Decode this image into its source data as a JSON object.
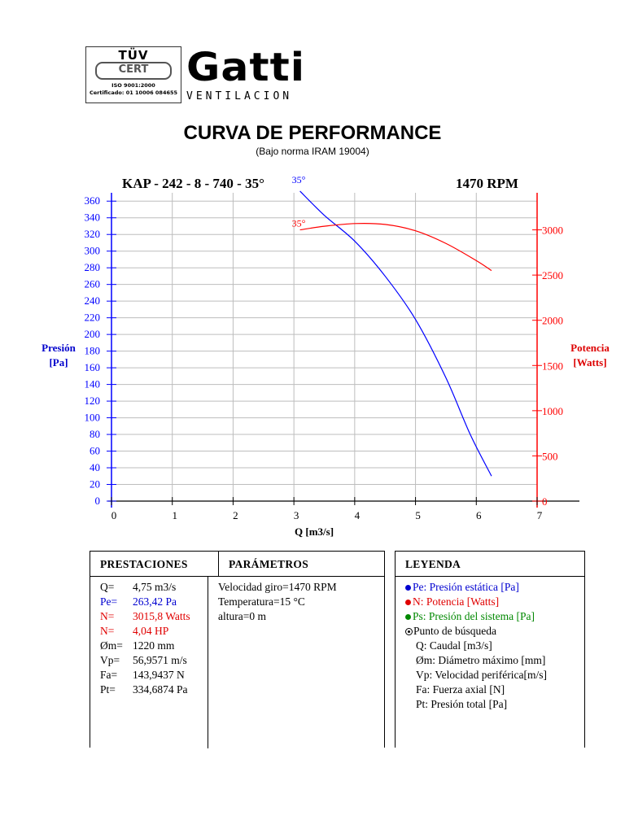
{
  "header": {
    "cert_top": "TÜV",
    "cert_mid": "CERT",
    "cert_iso": "ISO 9001:2000",
    "cert_number": "Certificado: 01 10006 084655",
    "brand_name": "Gatti",
    "brand_sub": "VENTILACION",
    "title": "CURVA DE PERFORMANCE",
    "subtitle": "(Bajo norma IRAM 19004)",
    "model": "KAP - 242 - 8 - 740 - 35°",
    "rpm": "1470 RPM"
  },
  "chart_data": {
    "type": "line",
    "xlabel": "Q [m3/s]",
    "ylabel_left": "Presión [Pa]",
    "ylabel_right": "Potencia [Watts]",
    "xlim": [
      0,
      7
    ],
    "ylim_left": [
      0,
      370
    ],
    "ylim_right": [
      0,
      3410
    ],
    "xticks": [
      0,
      1,
      2,
      3,
      4,
      5,
      6,
      7
    ],
    "yticks_left": [
      0,
      20,
      40,
      60,
      80,
      100,
      120,
      140,
      160,
      180,
      200,
      220,
      240,
      260,
      280,
      300,
      320,
      340,
      360
    ],
    "yticks_right": [
      0,
      500,
      1000,
      1500,
      2000,
      2500,
      3000
    ],
    "grid": true,
    "colors": {
      "pressure": "#0000ff",
      "power": "#ff0000"
    },
    "series": [
      {
        "name": "Pe",
        "label": "35°",
        "axis": "left",
        "x": [
          3.1,
          3.5,
          4.0,
          4.5,
          5.0,
          5.5,
          5.9,
          6.25
        ],
        "y": [
          372,
          343,
          312,
          270,
          218,
          148,
          80,
          30
        ]
      },
      {
        "name": "N",
        "label": "35°",
        "axis": "right",
        "x": [
          3.1,
          3.5,
          4.0,
          4.5,
          5.0,
          5.5,
          6.0,
          6.25
        ],
        "y": [
          3000,
          3040,
          3070,
          3060,
          2990,
          2850,
          2660,
          2550
        ]
      }
    ]
  },
  "prestaciones": {
    "header": "PRESTACIONES",
    "rows": [
      {
        "k": "Q=",
        "v": "4,75 m3/s",
        "color": ""
      },
      {
        "k": "Pe=",
        "v": "263,42 Pa",
        "color": "blue"
      },
      {
        "k": "N=",
        "v": "3015,8 Watts",
        "color": "red"
      },
      {
        "k": "N=",
        "v": "4,04 HP",
        "color": "red"
      },
      {
        "k": "Øm=",
        "v": "1220 mm",
        "color": ""
      },
      {
        "k": "Vp=",
        "v": "56,9571 m/s",
        "color": ""
      },
      {
        "k": "Fa=",
        "v": "143,9437 N",
        "color": ""
      },
      {
        "k": "Pt=",
        "v": "334,6874 Pa",
        "color": ""
      }
    ]
  },
  "parametros": {
    "header": "PARÁMETROS",
    "rows": [
      "Velocidad giro=1470 RPM",
      "Temperatura=15 °C",
      "altura=0 m"
    ]
  },
  "leyenda": {
    "header": "LEYENDA",
    "pe": "Pe: Presión estática [Pa]",
    "n": "N: Potencia [Watts]",
    "ps": "Ps: Presión del sistema [Pa]",
    "punto": "Punto de búsqueda",
    "items": [
      "Q: Caudal [m3/s]",
      "Øm: Diámetro máximo [mm]",
      "Vp: Velocidad periférica[m/s]",
      "Fa: Fuerza axial [N]",
      "Pt: Presión total [Pa]"
    ]
  }
}
